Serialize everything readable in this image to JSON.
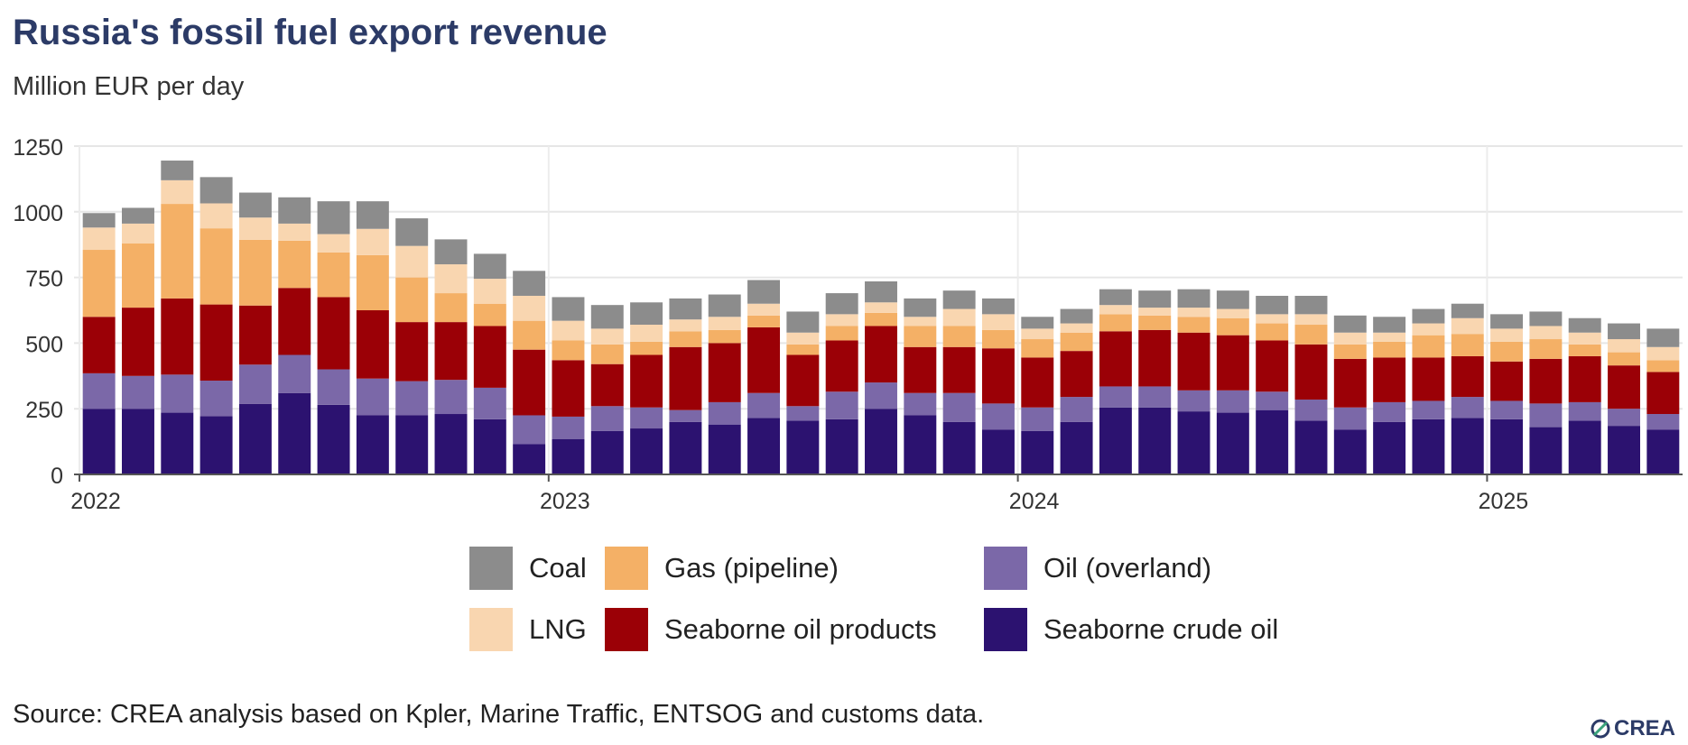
{
  "chart_data": {
    "type": "bar",
    "stacked": true,
    "title": "Russia's fossil fuel export revenue",
    "subtitle": "Million EUR per day",
    "ylim": [
      0,
      1250
    ],
    "yticks": [
      0,
      250,
      500,
      750,
      1000,
      1250
    ],
    "grid": true,
    "legend_position": "bottom",
    "x_ticks": [
      {
        "label": "2022",
        "index": 0
      },
      {
        "label": "2023",
        "index": 12
      },
      {
        "label": "2024",
        "index": 24
      },
      {
        "label": "2025",
        "index": 36
      }
    ],
    "categories": [
      "2022-01",
      "2022-02",
      "2022-03",
      "2022-04",
      "2022-05",
      "2022-06",
      "2022-07",
      "2022-08",
      "2022-09",
      "2022-10",
      "2022-11",
      "2022-12",
      "2023-01",
      "2023-02",
      "2023-03",
      "2023-04",
      "2023-05",
      "2023-06",
      "2023-07",
      "2023-08",
      "2023-09",
      "2023-10",
      "2023-11",
      "2023-12",
      "2024-01",
      "2024-02",
      "2024-03",
      "2024-04",
      "2024-05",
      "2024-06",
      "2024-07",
      "2024-08",
      "2024-09",
      "2024-10",
      "2024-11",
      "2024-12",
      "2025-01",
      "2025-02",
      "2025-03",
      "2025-04",
      "2025-05"
    ],
    "series": [
      {
        "name": "Seaborne crude oil",
        "color": "#2c1270",
        "values": [
          250,
          250,
          235,
          222,
          268,
          310,
          265,
          225,
          225,
          230,
          210,
          115,
          135,
          165,
          175,
          200,
          190,
          215,
          205,
          210,
          250,
          225,
          200,
          170,
          165,
          200,
          255,
          255,
          240,
          235,
          245,
          205,
          170,
          200,
          210,
          215,
          210,
          180,
          205,
          185,
          170
        ]
      },
      {
        "name": "Oil (overland)",
        "color": "#7b68a8",
        "values": [
          135,
          125,
          145,
          135,
          150,
          145,
          135,
          140,
          130,
          130,
          120,
          110,
          85,
          95,
          80,
          45,
          85,
          95,
          55,
          105,
          100,
          85,
          110,
          100,
          90,
          95,
          80,
          80,
          80,
          85,
          70,
          80,
          85,
          75,
          70,
          80,
          70,
          90,
          70,
          65,
          60
        ]
      },
      {
        "name": "Seaborne oil products",
        "color": "#9b0006",
        "values": [
          215,
          260,
          290,
          290,
          225,
          255,
          275,
          260,
          225,
          220,
          235,
          250,
          215,
          160,
          200,
          240,
          225,
          250,
          195,
          195,
          215,
          175,
          175,
          210,
          190,
          175,
          210,
          215,
          220,
          210,
          195,
          210,
          185,
          170,
          165,
          155,
          150,
          170,
          175,
          165,
          160
        ]
      },
      {
        "name": "Gas (pipeline)",
        "color": "#f4b066",
        "values": [
          255,
          245,
          360,
          290,
          250,
          180,
          170,
          210,
          170,
          110,
          85,
          110,
          75,
          75,
          50,
          60,
          50,
          45,
          40,
          55,
          50,
          80,
          80,
          70,
          70,
          70,
          65,
          55,
          60,
          65,
          65,
          75,
          55,
          60,
          85,
          85,
          75,
          75,
          45,
          50,
          45
        ]
      },
      {
        "name": "LNG",
        "color": "#f9d6b0",
        "values": [
          85,
          75,
          90,
          95,
          85,
          65,
          70,
          100,
          120,
          110,
          95,
          95,
          75,
          60,
          65,
          45,
          50,
          45,
          45,
          45,
          40,
          35,
          65,
          60,
          40,
          35,
          35,
          30,
          35,
          35,
          35,
          40,
          45,
          35,
          45,
          60,
          50,
          50,
          45,
          50,
          50
        ]
      },
      {
        "name": "Coal",
        "color": "#8c8c8c",
        "values": [
          55,
          60,
          75,
          100,
          95,
          100,
          125,
          105,
          105,
          95,
          95,
          95,
          90,
          90,
          85,
          80,
          85,
          90,
          80,
          80,
          80,
          70,
          70,
          60,
          45,
          55,
          60,
          65,
          70,
          70,
          70,
          70,
          65,
          60,
          55,
          55,
          55,
          55,
          55,
          60,
          70
        ]
      }
    ],
    "legend": [
      {
        "name": "Coal",
        "color": "#8c8c8c"
      },
      {
        "name": "Gas (pipeline)",
        "color": "#f4b066"
      },
      {
        "name": "Oil (overland)",
        "color": "#7b68a8"
      },
      {
        "name": "LNG",
        "color": "#f9d6b0"
      },
      {
        "name": "Seaborne oil products",
        "color": "#9b0006"
      },
      {
        "name": "Seaborne crude oil",
        "color": "#2c1270"
      }
    ],
    "source": "Source: CREA analysis based on Kpler, Marine Traffic, ENTSOG and customs data."
  },
  "logo": {
    "text": "CREA",
    "icon": "crea-logo-icon"
  }
}
